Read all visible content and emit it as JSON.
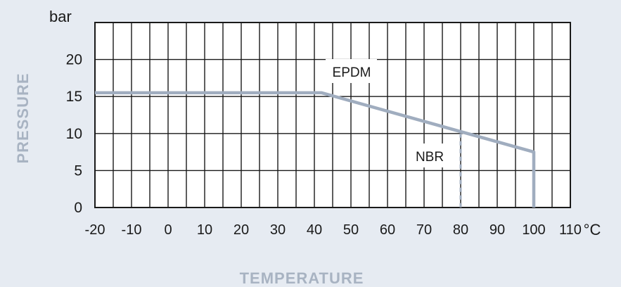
{
  "chart_data": {
    "type": "line",
    "title": "",
    "xlabel": "TEMPERATURE",
    "ylabel": "PRESSURE",
    "y_unit": "bar",
    "x_unit": "°C",
    "xlim": [
      -20,
      110
    ],
    "ylim": [
      0,
      25
    ],
    "x_ticks": [
      "-20",
      "-10",
      "0",
      "10",
      "20",
      "30",
      "40",
      "50",
      "60",
      "70",
      "80",
      "90",
      "100",
      "110"
    ],
    "y_ticks": [
      "0",
      "5",
      "10",
      "15",
      "20"
    ],
    "grid": true,
    "series": [
      {
        "name": "EPDM",
        "x": [
          -20,
          42,
          100,
          100
        ],
        "y": [
          15.5,
          15.5,
          7.5,
          0
        ],
        "color": "#a0adbf",
        "style": "solid"
      },
      {
        "name": "NBR",
        "x": [
          80,
          80
        ],
        "y": [
          10,
          0
        ],
        "color": "#a0adbf",
        "style": "dashed"
      }
    ]
  }
}
